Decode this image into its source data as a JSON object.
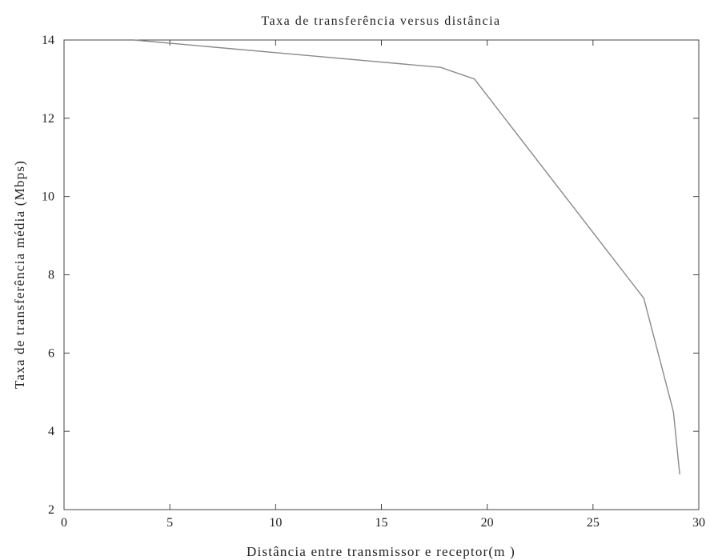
{
  "chart_data": {
    "type": "line",
    "title": "Taxa de transferência versus distância",
    "xlabel": "Distância entre transmissor e receptor(m )",
    "ylabel": "Taxa de transferência média (Mbps)",
    "xlim": [
      0,
      30
    ],
    "ylim": [
      2,
      14
    ],
    "xticks": [
      0,
      5,
      10,
      15,
      20,
      25,
      30
    ],
    "yticks": [
      2,
      4,
      6,
      8,
      10,
      12,
      14
    ],
    "grid": false,
    "series": [
      {
        "x": [
          3.3,
          17.8,
          19.4,
          27.4,
          28.8,
          29.1
        ],
        "y": [
          14.0,
          13.3,
          13.0,
          7.4,
          4.5,
          2.9
        ]
      }
    ]
  }
}
